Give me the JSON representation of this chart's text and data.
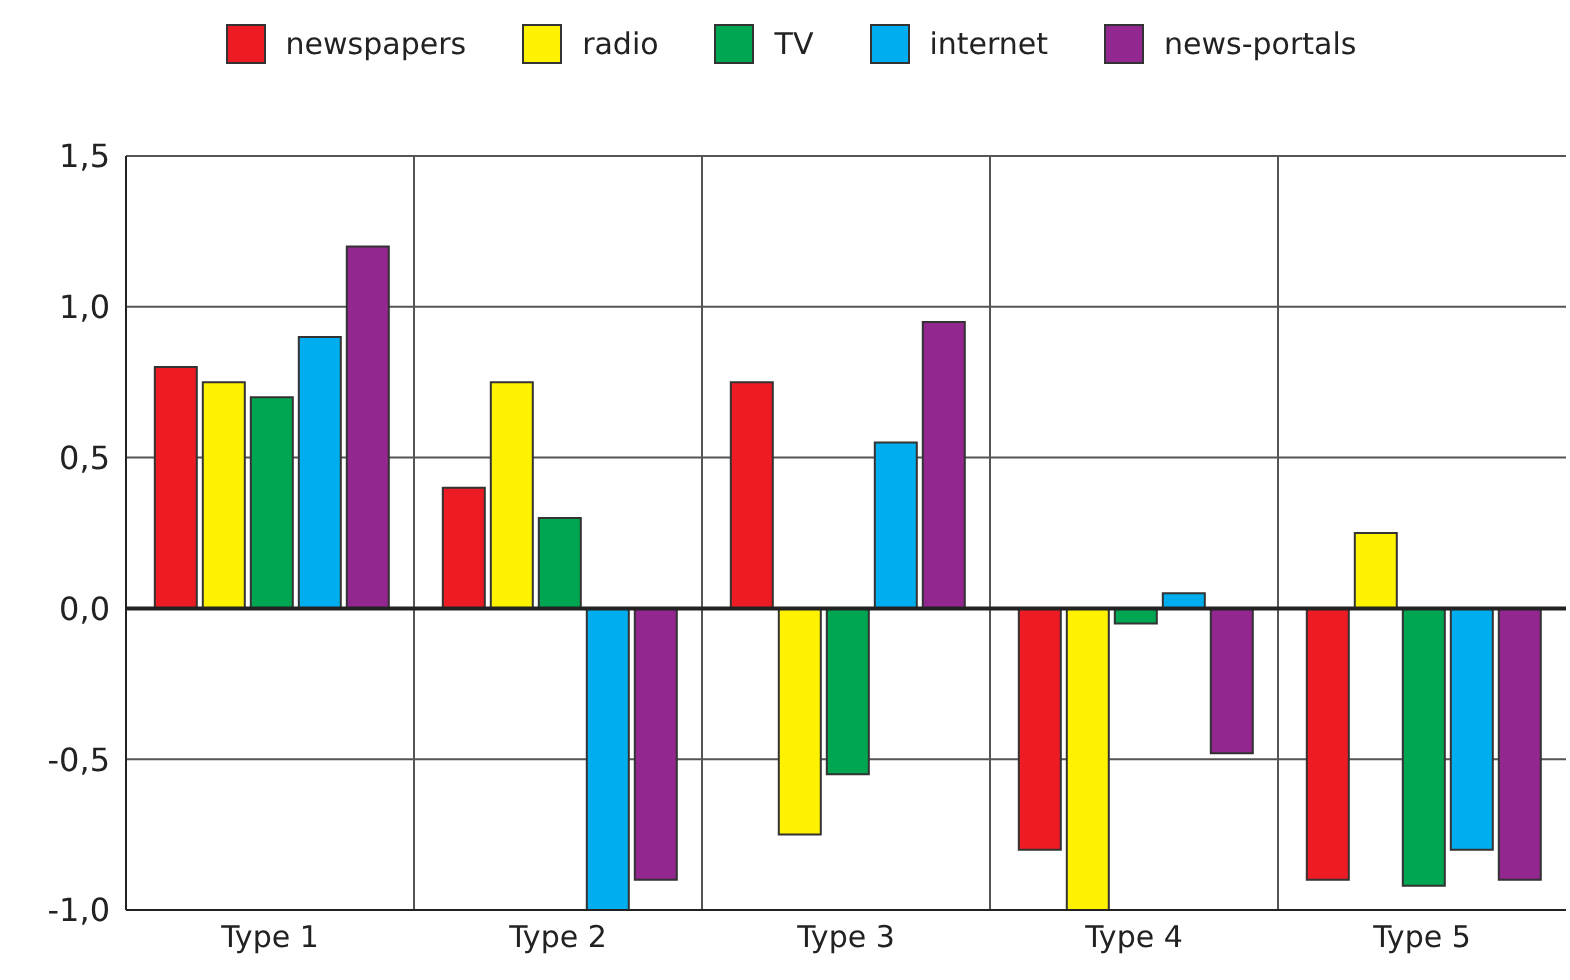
{
  "chart_data": {
    "type": "bar",
    "categories": [
      "Type 1",
      "Type 2",
      "Type 3",
      "Type 4",
      "Type 5"
    ],
    "series": [
      {
        "name": "newspapers",
        "color": "#ed1c24",
        "values": [
          0.8,
          0.4,
          0.75,
          -0.8,
          -0.9
        ]
      },
      {
        "name": "radio",
        "color": "#fff200",
        "values": [
          0.75,
          0.75,
          -0.75,
          -1.0,
          0.25
        ]
      },
      {
        "name": "TV",
        "color": "#00a651",
        "values": [
          0.7,
          0.3,
          -0.55,
          -0.05,
          -0.92
        ]
      },
      {
        "name": "internet",
        "color": "#00aeef",
        "values": [
          0.9,
          -1.0,
          0.55,
          0.05,
          -0.8
        ]
      },
      {
        "name": "news-portals",
        "color": "#92278f",
        "values": [
          1.2,
          -0.9,
          0.95,
          -0.48,
          -0.9
        ]
      }
    ],
    "ylim": [
      -1.0,
      1.5
    ],
    "yticks": [
      {
        "value": -1.0,
        "label": "-1,0"
      },
      {
        "value": -0.5,
        "label": "-0,5"
      },
      {
        "value": 0,
        "label": "0,0"
      },
      {
        "value": 0.5,
        "label": "0,5"
      },
      {
        "value": 1.0,
        "label": "1,0"
      },
      {
        "value": 1.5,
        "label": "1,5"
      }
    ],
    "grid": true,
    "legend": "top"
  }
}
